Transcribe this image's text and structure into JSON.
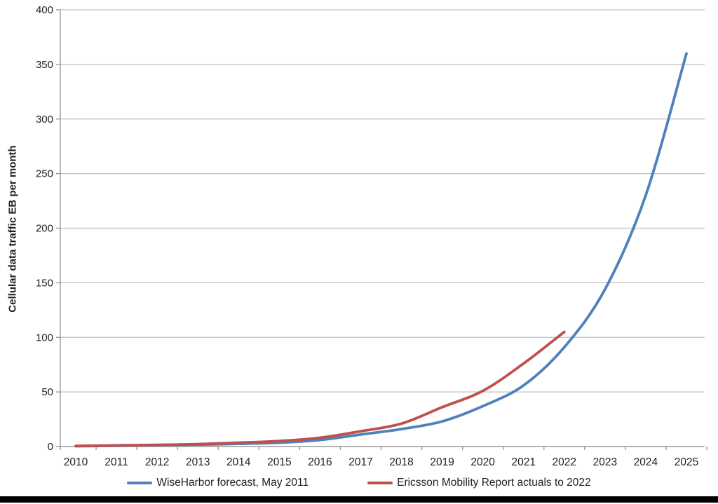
{
  "page": {
    "background": "#ffffff",
    "bottom_bar_color": "#000000"
  },
  "chart_data": {
    "type": "line",
    "title": "",
    "xlabel": "",
    "ylabel": "Cellular data traffic EB per month",
    "categories": [
      "2010",
      "2011",
      "2012",
      "2013",
      "2014",
      "2015",
      "2016",
      "2017",
      "2018",
      "2019",
      "2020",
      "2021",
      "2022",
      "2023",
      "2024",
      "2025"
    ],
    "y_ticks": [
      0,
      50,
      100,
      150,
      200,
      250,
      300,
      350,
      400
    ],
    "ylim": [
      0,
      400
    ],
    "grid": "horizontal",
    "grid_color": "#bfbfbf",
    "axis_color": "#9a9a9a",
    "tick_label_color": "#1f1f1f",
    "legend_position": "bottom",
    "smoothed": true,
    "series": [
      {
        "name": "WiseHarbor forecast, May 2011",
        "color": "#4F81BD",
        "x": [
          "2010",
          "2011",
          "2012",
          "2013",
          "2014",
          "2015",
          "2016",
          "2017",
          "2018",
          "2019",
          "2020",
          "2021",
          "2022",
          "2023",
          "2024",
          "2025"
        ],
        "values": [
          0.3,
          0.7,
          1.2,
          1.8,
          2.5,
          3.5,
          6,
          11,
          16,
          23,
          37,
          56,
          91,
          144,
          230,
          360
        ]
      },
      {
        "name": "Ericsson Mobility Report actuals to 2022",
        "color": "#C0504D",
        "x": [
          "2010",
          "2011",
          "2012",
          "2013",
          "2014",
          "2015",
          "2016",
          "2017",
          "2018",
          "2019",
          "2020",
          "2021",
          "2022"
        ],
        "values": [
          0.5,
          1,
          1.5,
          2.2,
          3.5,
          5,
          8,
          14,
          21,
          36,
          51,
          76,
          105
        ]
      }
    ]
  }
}
